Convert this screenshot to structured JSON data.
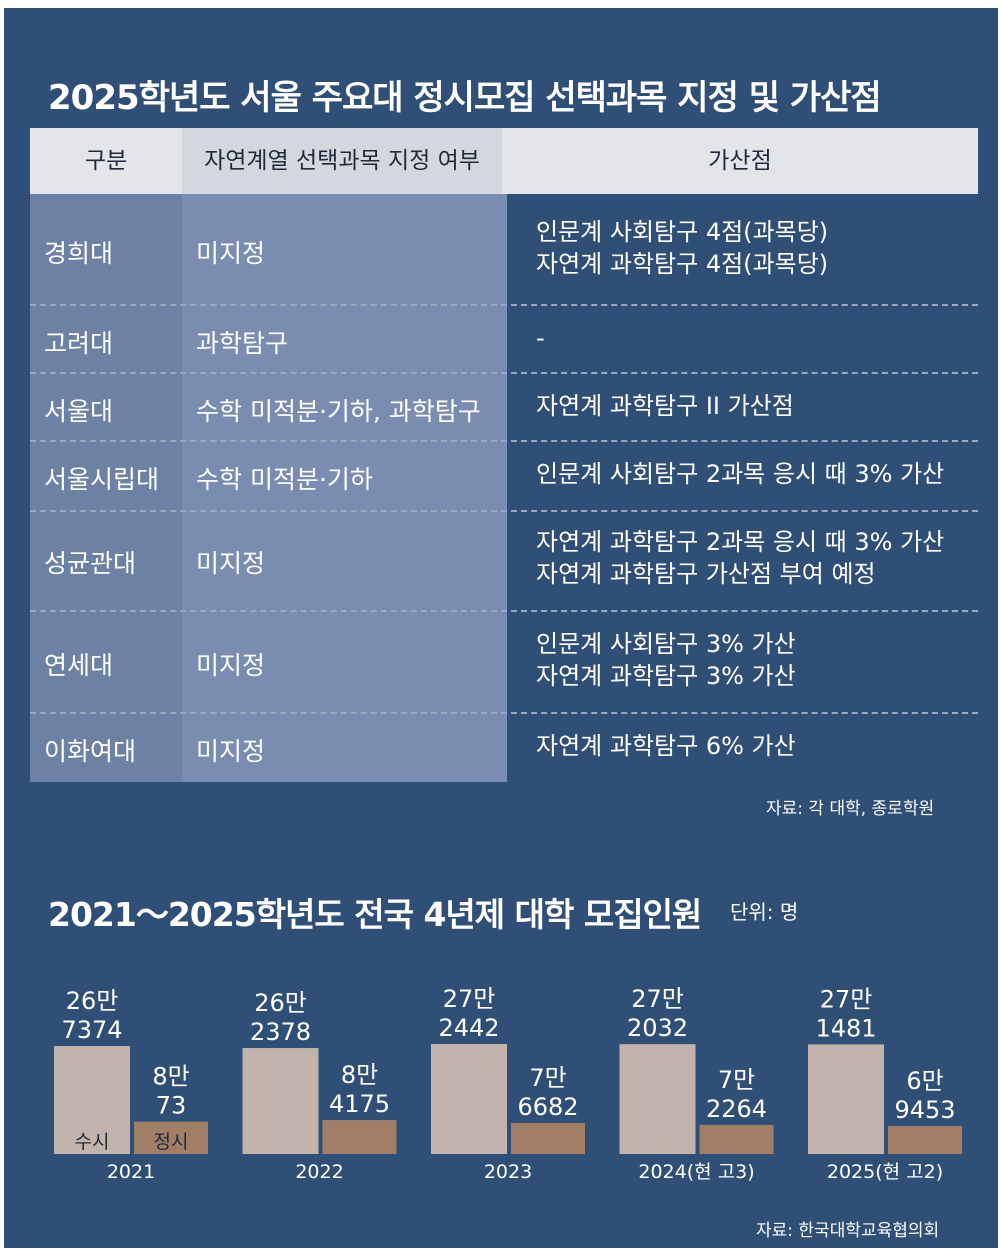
{
  "table": {
    "title": "2025학년도 서울 주요대 정시모집 선택과목 지정 및 가산점",
    "headers": [
      "구분",
      "자연계열 선택과목 지정 여부",
      "가산점"
    ],
    "rows": [
      {
        "university": "경희대",
        "required": "미지정",
        "bonus": [
          "인문계 사회탐구 4점(과목당)",
          "자연계 과학탐구 4점(과목당)"
        ]
      },
      {
        "university": "고려대",
        "required": "과학탐구",
        "bonus": [
          "-"
        ]
      },
      {
        "university": "서울대",
        "required": "수학 미적분·기하, 과학탐구",
        "bonus": [
          "자연계 과학탐구 II 가산점"
        ]
      },
      {
        "university": "서울시립대",
        "required": "수학 미적분·기하",
        "bonus": [
          "인문계 사회탐구 2과목 응시 때 3% 가산"
        ]
      },
      {
        "university": "성균관대",
        "required": "미지정",
        "bonus": [
          "자연계 과학탐구 2과목 응시 때 3% 가산",
          "자연계 과학탐구 가산점 부여 예정"
        ]
      },
      {
        "university": "연세대",
        "required": "미지정",
        "bonus": [
          "인문계 사회탐구 3% 가산",
          "자연계 과학탐구 3% 가산"
        ]
      },
      {
        "university": "이화여대",
        "required": "미지정",
        "bonus": [
          "자연계 과학탐구 6% 가산"
        ]
      }
    ],
    "source": "자료: 각 대학, 종로학원"
  },
  "chart_data": {
    "type": "bar",
    "title": "2021～2025학년도 전국 4년제 대학 모집인원",
    "unit_label": "단위: 명",
    "categories": [
      "2021",
      "2022",
      "2023",
      "2024(현 고3)",
      "2025(현 고2)"
    ],
    "series": [
      {
        "name": "수시",
        "values": [
          267374,
          262378,
          272442,
          272032,
          271481
        ],
        "labels": [
          [
            "26만",
            "7374"
          ],
          [
            "26만",
            "2378"
          ],
          [
            "27만",
            "2442"
          ],
          [
            "27만",
            "2032"
          ],
          [
            "27만",
            "1481"
          ]
        ],
        "color": "#c2b4ad"
      },
      {
        "name": "정시",
        "values": [
          80073,
          84175,
          76682,
          72264,
          69453
        ],
        "labels": [
          [
            "8만",
            "73"
          ],
          [
            "8만",
            "4175"
          ],
          [
            "7만",
            "6682"
          ],
          [
            "7만",
            "2264"
          ],
          [
            "6만",
            "9453"
          ]
        ],
        "color": "#a07f66"
      }
    ],
    "source": "자료: 한국대학교육협의회"
  }
}
